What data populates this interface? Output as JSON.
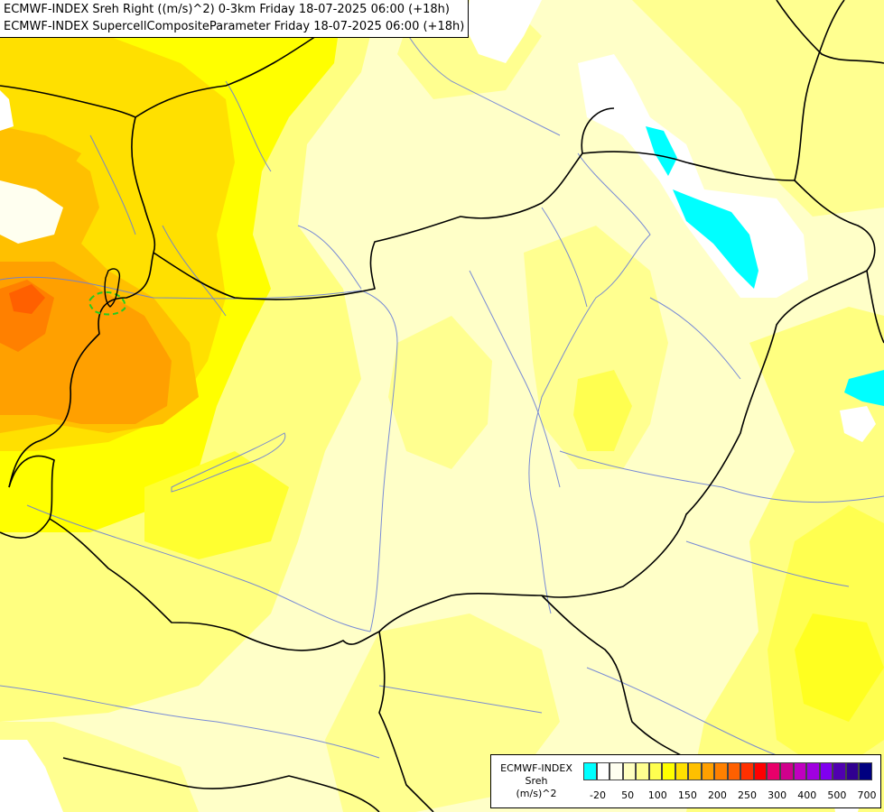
{
  "titles": [
    "ECMWF-INDEX Sreh Right ((m/s)^2) 0-3km Friday 18-07-2025 06:00 (+18h)",
    "ECMWF-INDEX SupercellCompositeParameter Friday 18-07-2025 06:00 (+18h)"
  ],
  "legend": {
    "line1": "ECMWF-INDEX",
    "line2": "Sreh",
    "line3": "(m/s)^2",
    "swatch_colors": [
      "#00ffff",
      "#ffffff",
      "#fffff0",
      "#ffffc0",
      "#ffff90",
      "#ffff50",
      "#ffff00",
      "#ffe000",
      "#ffc000",
      "#ffa000",
      "#ff8000",
      "#ff6000",
      "#ff3000",
      "#ff0000",
      "#e8006a",
      "#d0008c",
      "#c000c0",
      "#a000e0",
      "#8000f0",
      "#5000b0",
      "#300090",
      "#000080"
    ],
    "ticks": [
      "-20",
      "50",
      "100",
      "150",
      "200",
      "250",
      "300",
      "400",
      "500",
      "700"
    ]
  },
  "colors": {
    "background": "#ffffc8",
    "border_line": "#000000",
    "river_line": "#6b7fd7",
    "supercell_contour": "#22cc22"
  }
}
